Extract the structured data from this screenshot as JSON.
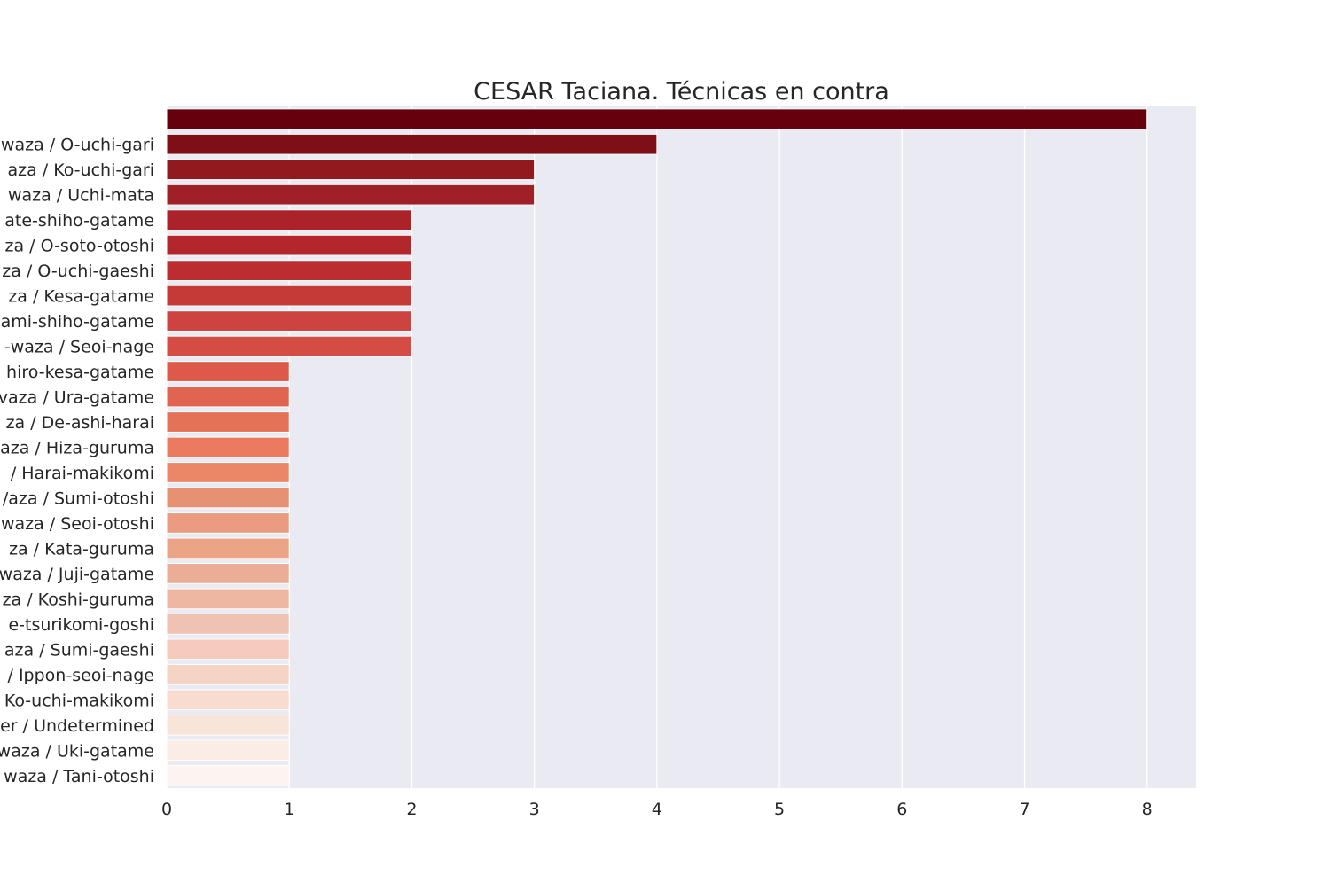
{
  "chart_data": {
    "type": "bar",
    "orientation": "horizontal",
    "title": "CESAR Taciana. Técnicas en contra",
    "xlabel": "",
    "ylabel": "",
    "xlim": [
      0,
      8.4
    ],
    "xticks": [
      "0",
      "1",
      "2",
      "3",
      "4",
      "5",
      "6",
      "7",
      "8"
    ],
    "grid": true,
    "legend": "none",
    "background_color": "#eaeaf2",
    "categories": [
      "",
      "waza / O-uchi-gari",
      "aza / Ko-uchi-gari",
      "waza / Uchi-mata",
      "ate-shiho-gatame",
      "za / O-soto-otoshi",
      "za / O-uchi-gaeshi",
      "za / Kesa-gatame",
      "ami-shiho-gatame",
      "-waza / Seoi-nage",
      "hiro-kesa-gatame",
      "vaza / Ura-gatame",
      "za / De-ashi-harai",
      "aza / Hiza-guruma",
      "/ Harai-makikomi",
      "/aza / Sumi-otoshi",
      "waza / Seoi-otoshi",
      "za / Kata-guruma",
      "waza / Juji-gatame",
      "za / Koshi-guruma",
      "e-tsurikomi-goshi",
      "aza / Sumi-gaeshi",
      "/ Ippon-seoi-nage",
      "Ko-uchi-makikomi",
      "er / Undetermined",
      "waza / Uki-gatame",
      "waza / Tani-otoshi"
    ],
    "values": [
      8,
      4,
      3,
      3,
      2,
      2,
      2,
      2,
      2,
      2,
      1,
      1,
      1,
      1,
      1,
      1,
      1,
      1,
      1,
      1,
      1,
      1,
      1,
      1,
      1,
      1,
      1
    ],
    "colors": [
      "#67000d",
      "#7e0f17",
      "#921a1f",
      "#a02027",
      "#ab2329",
      "#b3272c",
      "#bc2d30",
      "#c53937",
      "#cc4340",
      "#d54c44",
      "#dd5a4b",
      "#e06450",
      "#e47257",
      "#eb7b5f",
      "#eb8767",
      "#e69173",
      "#eb9b7f",
      "#eca487",
      "#ecad97",
      "#edb7a2",
      "#f0c2b2",
      "#f4cbbc",
      "#f5d3c5",
      "#f7dccf",
      "#f9e4da",
      "#fbece6",
      "#fdf3f0"
    ]
  }
}
